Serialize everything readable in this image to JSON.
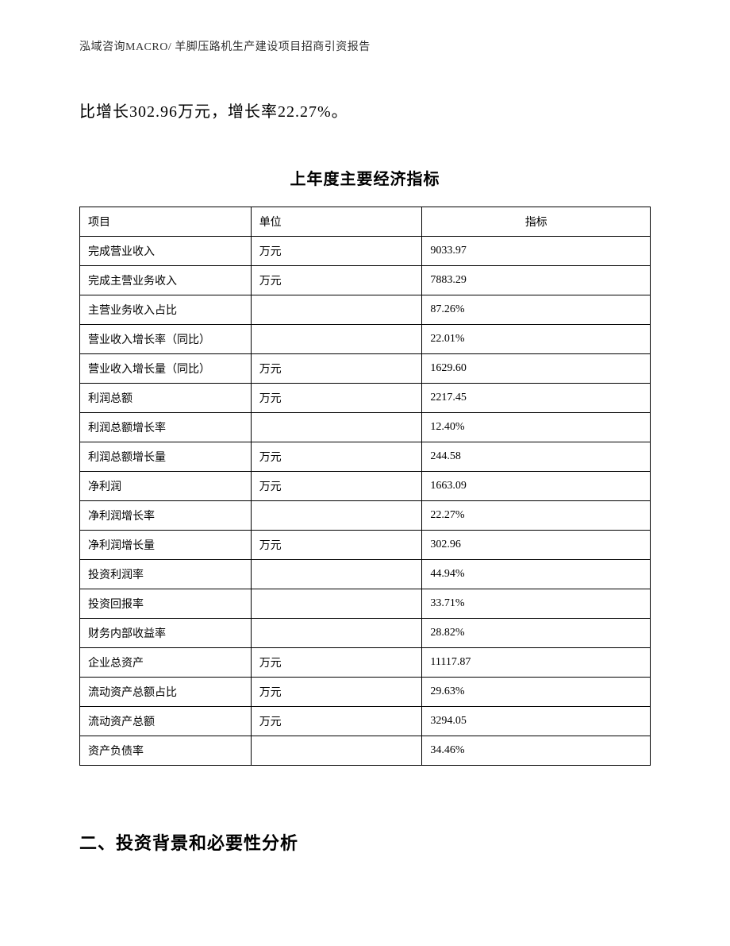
{
  "header": "泓域咨询MACRO/ 羊脚压路机生产建设项目招商引资报告",
  "intro": "比增长302.96万元，增长率22.27%。",
  "tableTitle": "上年度主要经济指标",
  "table": {
    "columns": [
      "项目",
      "单位",
      "指标"
    ],
    "rows": [
      [
        "完成营业收入",
        "万元",
        "9033.97"
      ],
      [
        "完成主营业务收入",
        "万元",
        "7883.29"
      ],
      [
        "主营业务收入占比",
        "",
        "87.26%"
      ],
      [
        "营业收入增长率（同比）",
        "",
        "22.01%"
      ],
      [
        "营业收入增长量（同比）",
        "万元",
        "1629.60"
      ],
      [
        "利润总额",
        "万元",
        "2217.45"
      ],
      [
        "利润总额增长率",
        "",
        "12.40%"
      ],
      [
        "利润总额增长量",
        "万元",
        "244.58"
      ],
      [
        "净利润",
        "万元",
        "1663.09"
      ],
      [
        "净利润增长率",
        "",
        "22.27%"
      ],
      [
        "净利润增长量",
        "万元",
        "302.96"
      ],
      [
        "投资利润率",
        "",
        "44.94%"
      ],
      [
        "投资回报率",
        "",
        "33.71%"
      ],
      [
        "财务内部收益率",
        "",
        "28.82%"
      ],
      [
        "企业总资产",
        "万元",
        "11117.87"
      ],
      [
        "流动资产总额占比",
        "万元",
        "29.63%"
      ],
      [
        "流动资产总额",
        "万元",
        "3294.05"
      ],
      [
        "资产负债率",
        "",
        "34.46%"
      ]
    ]
  },
  "sectionHeading": "二、投资背景和必要性分析"
}
